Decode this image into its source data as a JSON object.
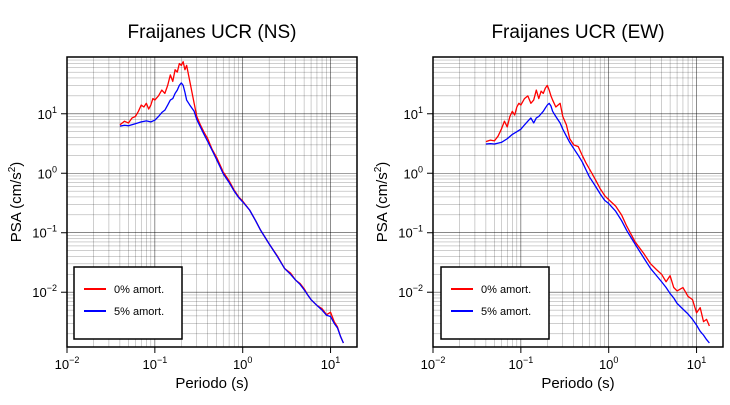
{
  "chart_data": [
    {
      "type": "line",
      "title": "Fraijanes UCR (NS)",
      "xlabel": "Periodo (s)",
      "ylabel_main": "PSA (cm/s",
      "ylabel_sup": "2",
      "ylabel_close": ")",
      "xscale": "log",
      "yscale": "log",
      "xlim": [
        0.01,
        20
      ],
      "ylim": [
        0.0012,
        90
      ],
      "grid": true,
      "legend_position": "bottom-left",
      "x_ticks": [
        {
          "value": 0.01,
          "base": "10",
          "exp": "−2"
        },
        {
          "value": 0.1,
          "base": "10",
          "exp": "−1"
        },
        {
          "value": 1,
          "base": "10",
          "exp": "0"
        },
        {
          "value": 10,
          "base": "10",
          "exp": "1"
        }
      ],
      "y_ticks": [
        {
          "value": 0.01,
          "base": "10",
          "exp": "−2"
        },
        {
          "value": 0.1,
          "base": "10",
          "exp": "−1"
        },
        {
          "value": 1,
          "base": "10",
          "exp": "0"
        },
        {
          "value": 10,
          "base": "10",
          "exp": "1"
        }
      ],
      "series": [
        {
          "name": "0% amort.",
          "color": "#ff0000",
          "x": [
            0.04,
            0.045,
            0.05,
            0.055,
            0.06,
            0.065,
            0.07,
            0.075,
            0.08,
            0.085,
            0.09,
            0.095,
            0.1,
            0.11,
            0.12,
            0.13,
            0.14,
            0.15,
            0.16,
            0.17,
            0.18,
            0.19,
            0.2,
            0.21,
            0.22,
            0.23,
            0.25,
            0.28,
            0.3,
            0.33,
            0.36,
            0.4,
            0.45,
            0.5,
            0.55,
            0.6,
            0.7,
            0.8,
            0.9,
            1.0,
            1.2,
            1.4,
            1.6,
            2.0,
            2.5,
            3.0,
            3.5,
            4.0,
            4.5,
            5.0,
            5.5,
            6.0,
            7.0,
            8.0,
            9.0,
            10.0,
            11.0,
            12.0,
            13.0,
            14.0
          ],
          "y": [
            6.5,
            7.5,
            7.0,
            8.5,
            9.0,
            11.0,
            14.0,
            13.0,
            15.0,
            12.0,
            14.0,
            18.0,
            17.0,
            20.0,
            25.0,
            22.0,
            30.0,
            45.0,
            35.0,
            55.0,
            50.0,
            70.0,
            65.0,
            75.0,
            55.0,
            65.0,
            35.0,
            15.0,
            9.0,
            6.5,
            5.0,
            3.8,
            2.5,
            1.9,
            1.4,
            1.05,
            0.75,
            0.52,
            0.4,
            0.34,
            0.24,
            0.16,
            0.11,
            0.065,
            0.04,
            0.025,
            0.021,
            0.016,
            0.014,
            0.0115,
            0.009,
            0.0075,
            0.006,
            0.0053,
            0.0042,
            0.0046,
            0.0032,
            0.0026,
            0.0018,
            0.0014
          ]
        },
        {
          "name": "5% amort.",
          "color": "#0000ff",
          "x": [
            0.04,
            0.045,
            0.05,
            0.06,
            0.07,
            0.08,
            0.09,
            0.1,
            0.11,
            0.12,
            0.13,
            0.14,
            0.15,
            0.16,
            0.17,
            0.18,
            0.19,
            0.2,
            0.21,
            0.22,
            0.23,
            0.25,
            0.28,
            0.3,
            0.33,
            0.36,
            0.4,
            0.45,
            0.5,
            0.55,
            0.6,
            0.7,
            0.8,
            0.9,
            1.0,
            1.2,
            1.4,
            1.6,
            2.0,
            2.5,
            3.0,
            3.5,
            4.0,
            4.5,
            5.0,
            5.5,
            6.0,
            7.0,
            8.0,
            9.0,
            10.0,
            11.0,
            12.0,
            13.0,
            14.0
          ],
          "y": [
            6.2,
            6.4,
            6.3,
            6.8,
            7.3,
            7.6,
            7.3,
            7.8,
            9.0,
            10.5,
            11.5,
            14.0,
            17.0,
            18.0,
            22.0,
            25.0,
            30.0,
            33.0,
            30.0,
            23.0,
            17.0,
            14.0,
            11.0,
            8.0,
            6.0,
            4.6,
            3.4,
            2.4,
            1.75,
            1.3,
            0.98,
            0.7,
            0.5,
            0.39,
            0.33,
            0.24,
            0.16,
            0.11,
            0.065,
            0.039,
            0.025,
            0.02,
            0.016,
            0.0135,
            0.011,
            0.009,
            0.0075,
            0.006,
            0.005,
            0.0041,
            0.0039,
            0.003,
            0.0025,
            0.0018,
            0.0014
          ]
        }
      ]
    },
    {
      "type": "line",
      "title": "Fraijanes UCR (EW)",
      "xlabel": "Periodo (s)",
      "ylabel_main": "PSA (cm/s",
      "ylabel_sup": "2",
      "ylabel_close": ")",
      "xscale": "log",
      "yscale": "log",
      "xlim": [
        0.01,
        20
      ],
      "ylim": [
        0.0012,
        90
      ],
      "grid": true,
      "legend_position": "bottom-left",
      "x_ticks": [
        {
          "value": 0.01,
          "base": "10",
          "exp": "−2"
        },
        {
          "value": 0.1,
          "base": "10",
          "exp": "−1"
        },
        {
          "value": 1,
          "base": "10",
          "exp": "0"
        },
        {
          "value": 10,
          "base": "10",
          "exp": "1"
        }
      ],
      "y_ticks": [
        {
          "value": 0.01,
          "base": "10",
          "exp": "−2"
        },
        {
          "value": 0.1,
          "base": "10",
          "exp": "−1"
        },
        {
          "value": 1,
          "base": "10",
          "exp": "0"
        },
        {
          "value": 10,
          "base": "10",
          "exp": "1"
        }
      ],
      "series": [
        {
          "name": "0% amort.",
          "color": "#ff0000",
          "x": [
            0.04,
            0.045,
            0.05,
            0.055,
            0.06,
            0.065,
            0.07,
            0.075,
            0.08,
            0.085,
            0.09,
            0.095,
            0.1,
            0.11,
            0.12,
            0.13,
            0.14,
            0.15,
            0.16,
            0.17,
            0.18,
            0.19,
            0.2,
            0.21,
            0.22,
            0.23,
            0.25,
            0.28,
            0.3,
            0.33,
            0.36,
            0.4,
            0.45,
            0.5,
            0.55,
            0.6,
            0.7,
            0.8,
            0.9,
            1.0,
            1.2,
            1.4,
            1.6,
            2.0,
            2.5,
            3.0,
            3.5,
            4.0,
            4.5,
            5.0,
            5.5,
            6.0,
            7.0,
            8.0,
            9.0,
            10.0,
            11.0,
            12.0,
            13.0,
            14.0
          ],
          "y": [
            3.4,
            3.6,
            3.5,
            4.2,
            5.5,
            7.5,
            6.0,
            9.0,
            11.0,
            9.5,
            13.0,
            15.0,
            14.0,
            18.0,
            20.0,
            15.0,
            17.0,
            25.0,
            18.0,
            24.0,
            22.0,
            27.0,
            30.0,
            25.0,
            20.0,
            17.0,
            13.0,
            15.0,
            9.0,
            6.5,
            3.8,
            3.0,
            2.8,
            2.0,
            1.5,
            1.2,
            0.8,
            0.55,
            0.42,
            0.36,
            0.28,
            0.2,
            0.13,
            0.07,
            0.045,
            0.03,
            0.024,
            0.02,
            0.015,
            0.019,
            0.012,
            0.0105,
            0.012,
            0.0085,
            0.0075,
            0.0045,
            0.0055,
            0.0032,
            0.0035,
            0.0027
          ]
        },
        {
          "name": "5% amort.",
          "color": "#0000ff",
          "x": [
            0.04,
            0.045,
            0.05,
            0.06,
            0.07,
            0.08,
            0.09,
            0.1,
            0.11,
            0.12,
            0.13,
            0.14,
            0.15,
            0.16,
            0.17,
            0.18,
            0.19,
            0.2,
            0.21,
            0.22,
            0.23,
            0.25,
            0.28,
            0.3,
            0.33,
            0.36,
            0.4,
            0.45,
            0.5,
            0.55,
            0.6,
            0.7,
            0.8,
            0.9,
            1.0,
            1.2,
            1.4,
            1.6,
            2.0,
            2.5,
            3.0,
            3.5,
            4.0,
            4.5,
            5.0,
            5.5,
            6.0,
            7.0,
            8.0,
            9.0,
            10.0,
            11.0,
            12.0,
            13.0,
            14.0
          ],
          "y": [
            3.1,
            3.15,
            3.1,
            3.3,
            3.8,
            4.5,
            5.0,
            5.5,
            6.5,
            7.5,
            8.5,
            7.0,
            8.5,
            9.0,
            10.0,
            11.0,
            12.5,
            14.0,
            15.0,
            13.5,
            11.0,
            9.0,
            7.0,
            5.5,
            4.2,
            3.3,
            2.6,
            2.0,
            1.55,
            1.15,
            0.88,
            0.62,
            0.45,
            0.35,
            0.31,
            0.23,
            0.16,
            0.11,
            0.064,
            0.038,
            0.025,
            0.019,
            0.015,
            0.012,
            0.0095,
            0.008,
            0.0065,
            0.0052,
            0.0043,
            0.0035,
            0.0028,
            0.0022,
            0.0019,
            0.0016,
            0.0014
          ]
        }
      ]
    }
  ]
}
